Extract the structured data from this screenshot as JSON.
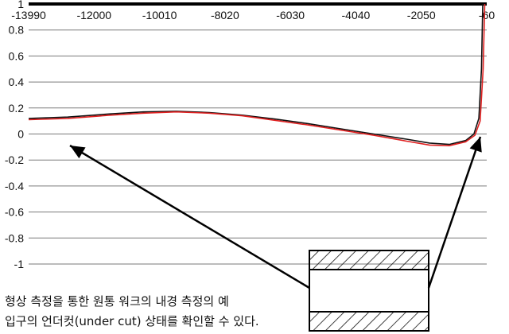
{
  "chart_data": {
    "type": "line",
    "x_ticks": [
      "-13990",
      "-12000",
      "-10010",
      "-8020",
      "-6030",
      "-4040",
      "-2050",
      "-60"
    ],
    "y_ticks": [
      "1",
      "0.8",
      "0.6",
      "0.4",
      "0.2",
      "0",
      "-0.2",
      "-0.4",
      "-0.6",
      "-0.8",
      "-1"
    ],
    "xlim": [
      -13990,
      -60
    ],
    "ylim": [
      -1,
      1
    ],
    "grid": true,
    "series": [
      {
        "color": "#111111",
        "points": [
          [
            -13990,
            0.12
          ],
          [
            -12800,
            0.13
          ],
          [
            -11500,
            0.155
          ],
          [
            -10500,
            0.17
          ],
          [
            -9500,
            0.175
          ],
          [
            -8500,
            0.165
          ],
          [
            -7500,
            0.145
          ],
          [
            -6500,
            0.115
          ],
          [
            -5500,
            0.08
          ],
          [
            -4500,
            0.04
          ],
          [
            -3500,
            0.0
          ],
          [
            -2500,
            -0.04
          ],
          [
            -1800,
            -0.07
          ],
          [
            -1200,
            -0.08
          ],
          [
            -700,
            -0.05
          ],
          [
            -450,
            0.0
          ],
          [
            -300,
            0.12
          ],
          [
            -220,
            0.5
          ],
          [
            -180,
            1.0
          ]
        ]
      },
      {
        "color": "#e02020",
        "points": [
          [
            -13990,
            0.11
          ],
          [
            -12800,
            0.12
          ],
          [
            -11500,
            0.145
          ],
          [
            -10500,
            0.16
          ],
          [
            -9500,
            0.17
          ],
          [
            -8500,
            0.16
          ],
          [
            -7500,
            0.14
          ],
          [
            -6500,
            0.105
          ],
          [
            -5500,
            0.07
          ],
          [
            -4500,
            0.03
          ],
          [
            -3500,
            -0.01
          ],
          [
            -2500,
            -0.055
          ],
          [
            -1800,
            -0.085
          ],
          [
            -1200,
            -0.09
          ],
          [
            -700,
            -0.06
          ],
          [
            -420,
            -0.01
          ],
          [
            -260,
            0.1
          ],
          [
            -170,
            0.5
          ],
          [
            -120,
            1.0
          ]
        ]
      }
    ]
  },
  "caption": {
    "line1": "형상 측정을 통한 원통 워크의 내경 측정의 예",
    "line2": "입구의 언더컷(under cut) 상태를 확인할 수 있다."
  },
  "colors": {
    "grid": "#7a7a7a",
    "axis": "#000000",
    "hatch": "#111111"
  }
}
